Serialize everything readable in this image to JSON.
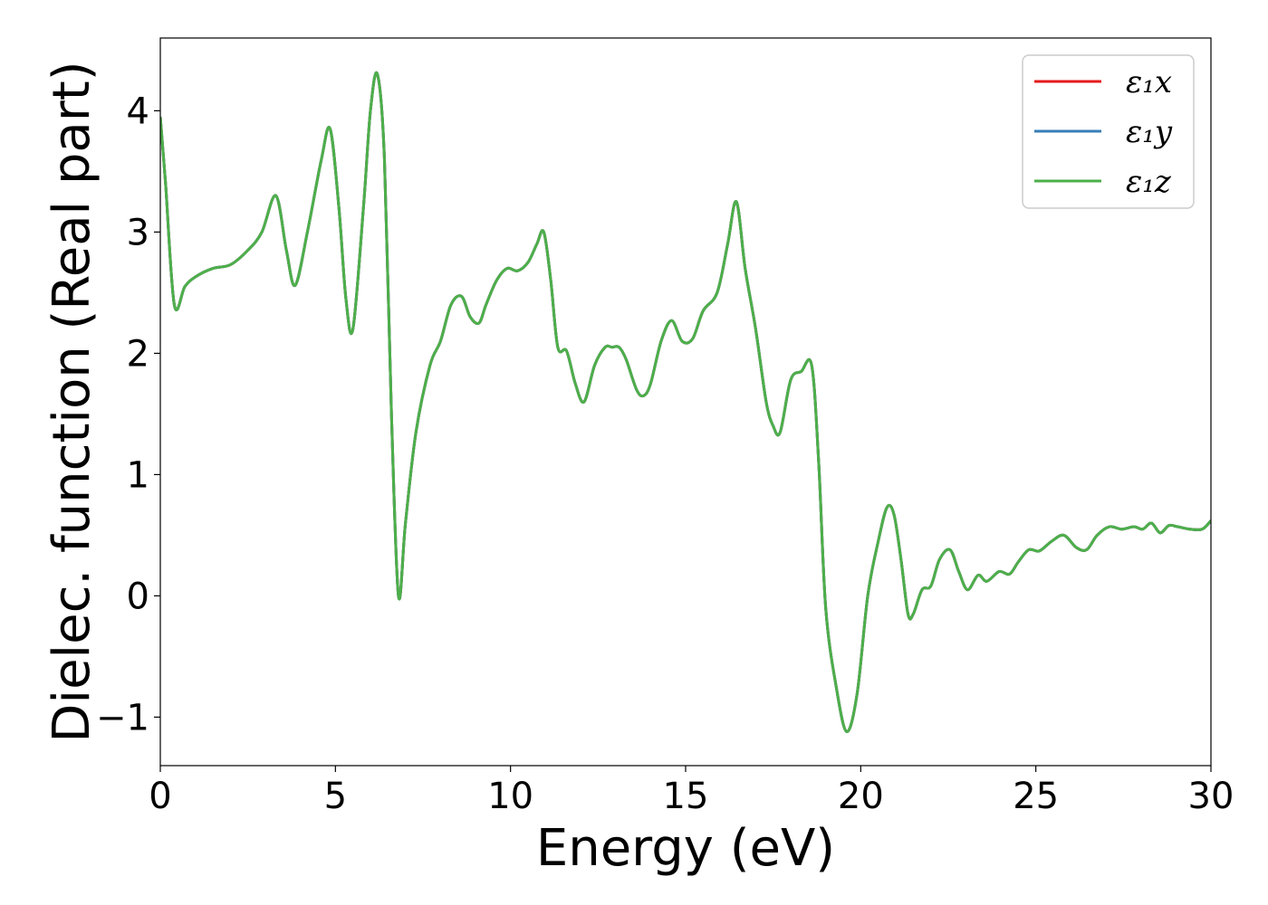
{
  "chart_data": {
    "type": "line",
    "xlabel": "Energy (eV)",
    "ylabel": "Dielec. function (Real part)",
    "xlim": [
      0,
      30
    ],
    "ylim": [
      -1.4,
      4.6
    ],
    "xticks": [
      0,
      5,
      10,
      15,
      20,
      25,
      30
    ],
    "xtick_labels": [
      "0",
      "5",
      "10",
      "15",
      "20",
      "25",
      "30"
    ],
    "yticks": [
      -1,
      0,
      1,
      2,
      3,
      4
    ],
    "ytick_labels": [
      "−1",
      "0",
      "1",
      "2",
      "3",
      "4"
    ],
    "grid": false,
    "legend_position": "top-right",
    "x": [
      0,
      0.15,
      0.4,
      0.7,
      1.0,
      1.5,
      2.0,
      2.5,
      2.9,
      3.3,
      3.6,
      3.85,
      4.2,
      4.6,
      4.85,
      5.1,
      5.3,
      5.5,
      5.8,
      6.0,
      6.2,
      6.4,
      6.6,
      6.8,
      7.0,
      7.3,
      7.7,
      8.0,
      8.3,
      8.6,
      8.85,
      9.1,
      9.3,
      9.6,
      9.9,
      10.2,
      10.5,
      10.75,
      10.95,
      11.15,
      11.35,
      11.6,
      11.85,
      12.1,
      12.4,
      12.7,
      12.9,
      13.1,
      13.3,
      13.6,
      13.8,
      14.0,
      14.3,
      14.6,
      14.9,
      15.2,
      15.5,
      15.9,
      16.2,
      16.45,
      16.7,
      17.0,
      17.3,
      17.5,
      17.7,
      18.0,
      18.3,
      18.6,
      18.8,
      19.0,
      19.3,
      19.6,
      19.9,
      20.2,
      20.5,
      20.75,
      20.95,
      21.15,
      21.35,
      21.5,
      21.75,
      22.0,
      22.25,
      22.55,
      22.8,
      23.05,
      23.35,
      23.6,
      23.95,
      24.25,
      24.5,
      24.8,
      25.1,
      25.45,
      25.8,
      26.15,
      26.45,
      26.75,
      27.1,
      27.45,
      27.8,
      28.05,
      28.3,
      28.55,
      28.8,
      29.05,
      29.4,
      29.75,
      30.0
    ],
    "series": [
      {
        "name": "ε₁x",
        "color": "#e41a1c",
        "values": "same-as-z"
      },
      {
        "name": "ε₁y",
        "color": "#377eb8",
        "values": "same-as-z"
      },
      {
        "name": "ε₁z",
        "color": "#4daf4a",
        "values": [
          3.95,
          3.4,
          2.4,
          2.55,
          2.63,
          2.7,
          2.73,
          2.85,
          3.0,
          3.3,
          2.85,
          2.56,
          3.0,
          3.6,
          3.85,
          3.2,
          2.45,
          2.2,
          3.2,
          4.0,
          4.3,
          3.6,
          1.5,
          0.0,
          0.6,
          1.35,
          1.9,
          2.1,
          2.4,
          2.47,
          2.3,
          2.25,
          2.4,
          2.6,
          2.7,
          2.68,
          2.75,
          2.9,
          3.0,
          2.6,
          2.05,
          2.02,
          1.75,
          1.6,
          1.9,
          2.05,
          2.05,
          2.05,
          1.95,
          1.7,
          1.65,
          1.75,
          2.1,
          2.27,
          2.1,
          2.12,
          2.35,
          2.5,
          2.9,
          3.25,
          2.7,
          2.2,
          1.6,
          1.4,
          1.35,
          1.78,
          1.85,
          1.9,
          1.1,
          -0.1,
          -0.75,
          -1.12,
          -0.8,
          0.0,
          0.45,
          0.73,
          0.67,
          0.3,
          -0.15,
          -0.15,
          0.05,
          0.08,
          0.3,
          0.38,
          0.2,
          0.05,
          0.17,
          0.12,
          0.2,
          0.18,
          0.28,
          0.38,
          0.37,
          0.45,
          0.5,
          0.4,
          0.38,
          0.5,
          0.57,
          0.55,
          0.57,
          0.55,
          0.6,
          0.52,
          0.58,
          0.57,
          0.55,
          0.55,
          0.62
        ]
      }
    ]
  }
}
